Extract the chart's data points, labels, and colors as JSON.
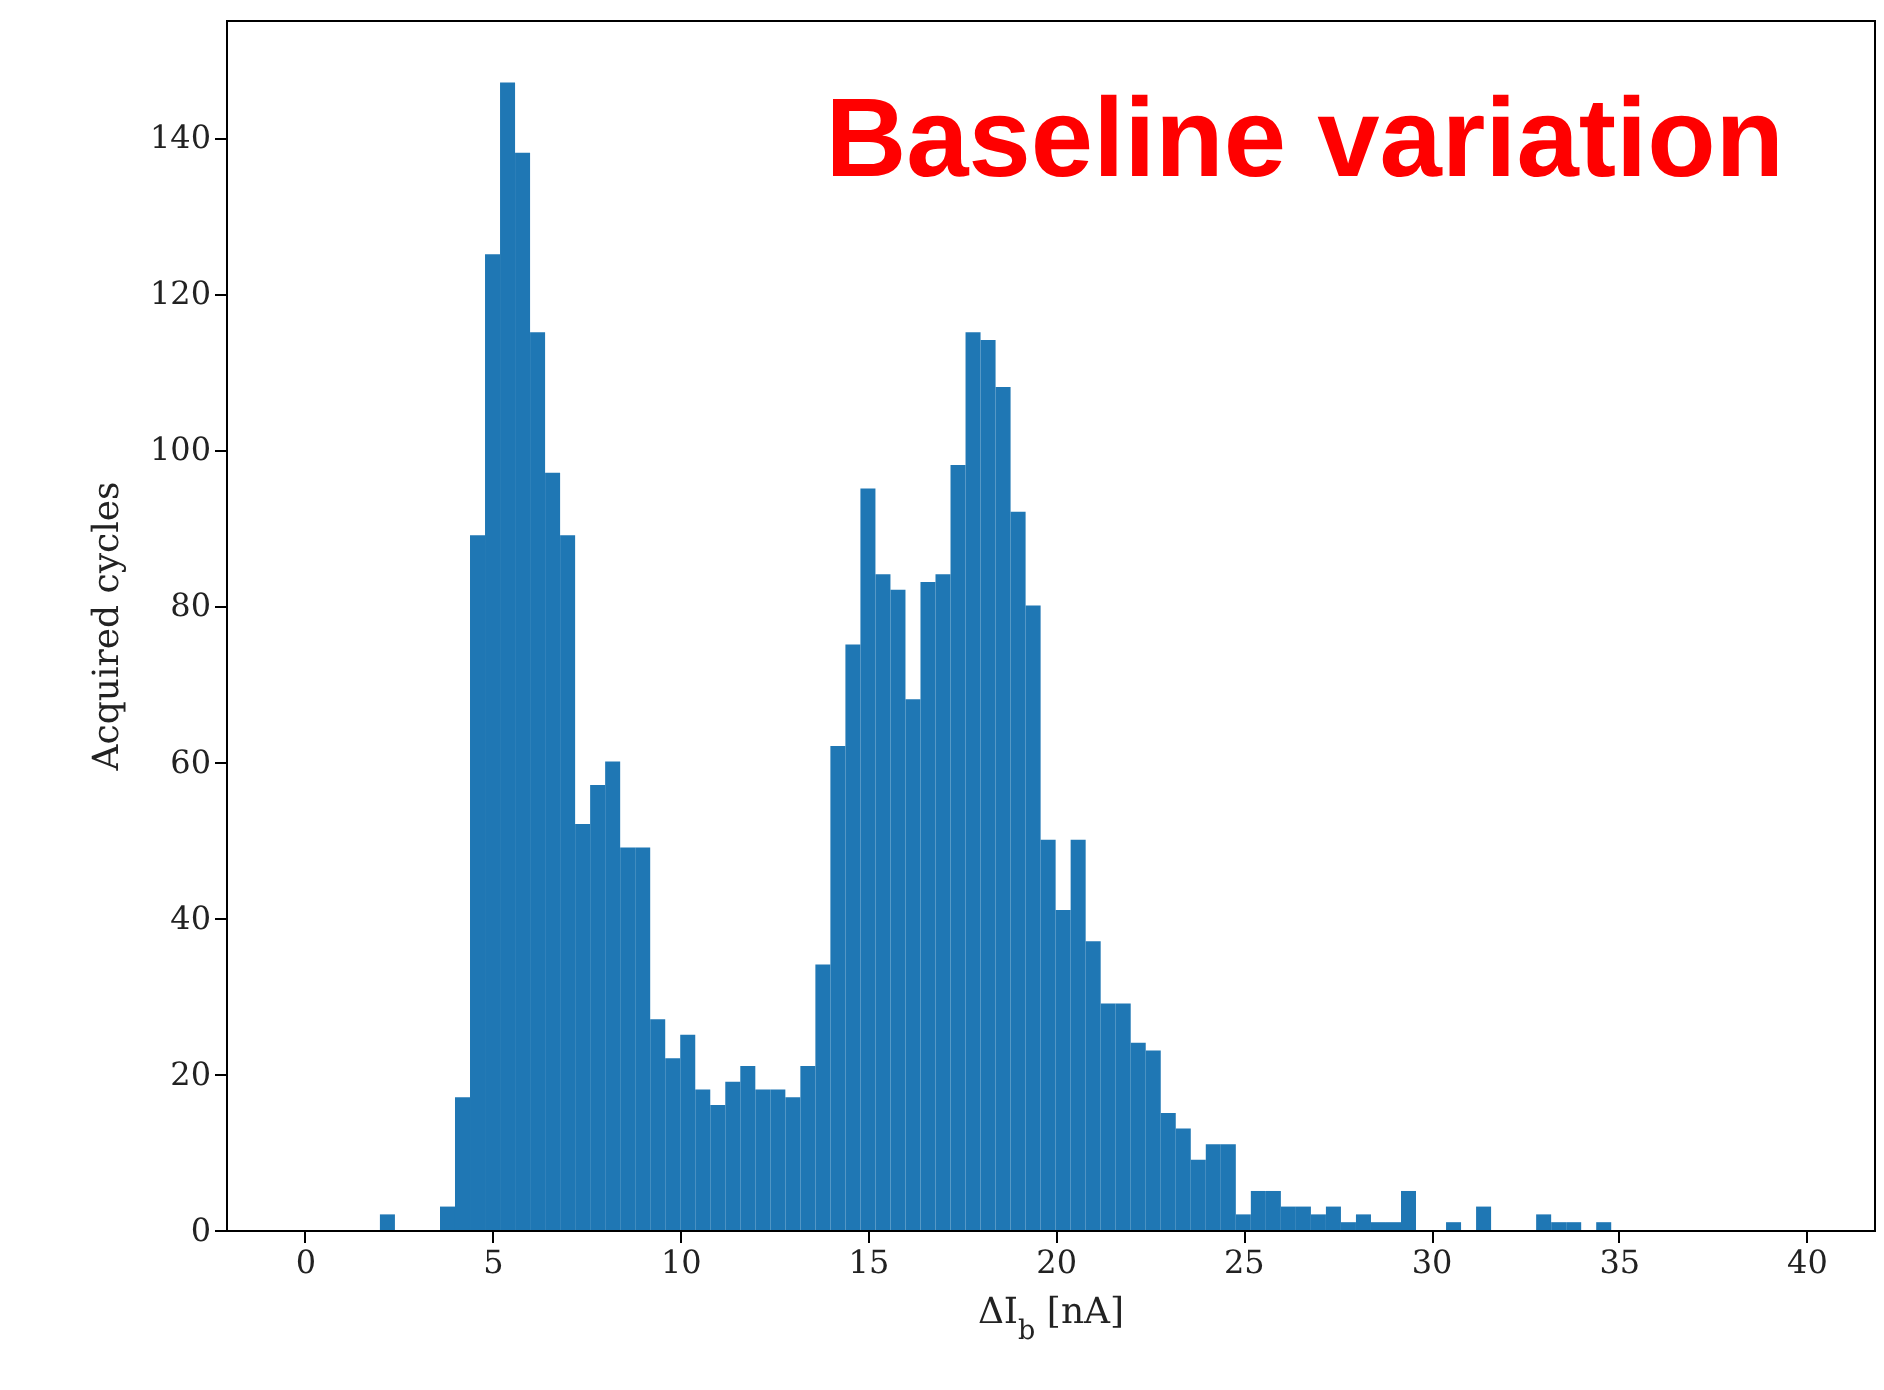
{
  "chart_data": {
    "type": "histogram",
    "title": "Baseline variation",
    "xlabel": "ΔI$_{b}$ [nA]",
    "ylabel": "Acquired cycles",
    "color": "#1f77b4",
    "bins": [
      2.0,
      2.4,
      2.8,
      3.2,
      3.6,
      4.0,
      4.4,
      4.8,
      5.2,
      5.6,
      6.0,
      6.4,
      6.8,
      7.2,
      7.6,
      8.0,
      8.4,
      8.8,
      9.2,
      9.6,
      10.0,
      10.4,
      10.8,
      11.2,
      11.6,
      12.0,
      12.4,
      12.8,
      13.2,
      13.6,
      14.0,
      14.4,
      14.8,
      15.2,
      15.6,
      16.0,
      16.4,
      16.8,
      17.2,
      17.6,
      18.0,
      18.4,
      18.8,
      19.2,
      19.6,
      20.0,
      20.4,
      20.8,
      21.2,
      21.6,
      22.0,
      22.4,
      22.8,
      23.2,
      23.6,
      24.0,
      24.4,
      24.8,
      25.2,
      25.6,
      26.0,
      26.4,
      26.8,
      27.2,
      27.6,
      28.0,
      28.4,
      28.8,
      29.2,
      29.6,
      30.0,
      30.4,
      30.8,
      31.2,
      31.6,
      32.0,
      32.4,
      32.8,
      33.2,
      33.6,
      34.0,
      34.4,
      34.8
    ],
    "values": [
      2,
      0,
      0,
      0,
      3,
      17,
      89,
      125,
      147,
      138,
      115,
      97,
      89,
      52,
      57,
      60,
      49,
      49,
      27,
      22,
      25,
      18,
      16,
      19,
      21,
      18,
      18,
      17,
      21,
      34,
      62,
      75,
      95,
      84,
      82,
      68,
      83,
      84,
      98,
      115,
      114,
      108,
      92,
      80,
      50,
      41,
      50,
      37,
      29,
      29,
      24,
      23,
      15,
      13,
      9,
      11,
      11,
      2,
      5,
      5,
      3,
      3,
      2,
      3,
      1,
      2,
      1,
      1,
      5,
      0,
      0,
      1,
      0,
      3,
      0,
      0,
      0,
      2,
      1,
      1,
      0,
      1
    ],
    "xlim": [
      -2.1,
      41.8
    ],
    "ylim": [
      0,
      155
    ],
    "xticks": [
      0,
      5,
      10,
      15,
      20,
      25,
      30,
      35,
      40
    ],
    "yticks": [
      0,
      20,
      40,
      60,
      80,
      100,
      120,
      140
    ],
    "grid": false
  }
}
